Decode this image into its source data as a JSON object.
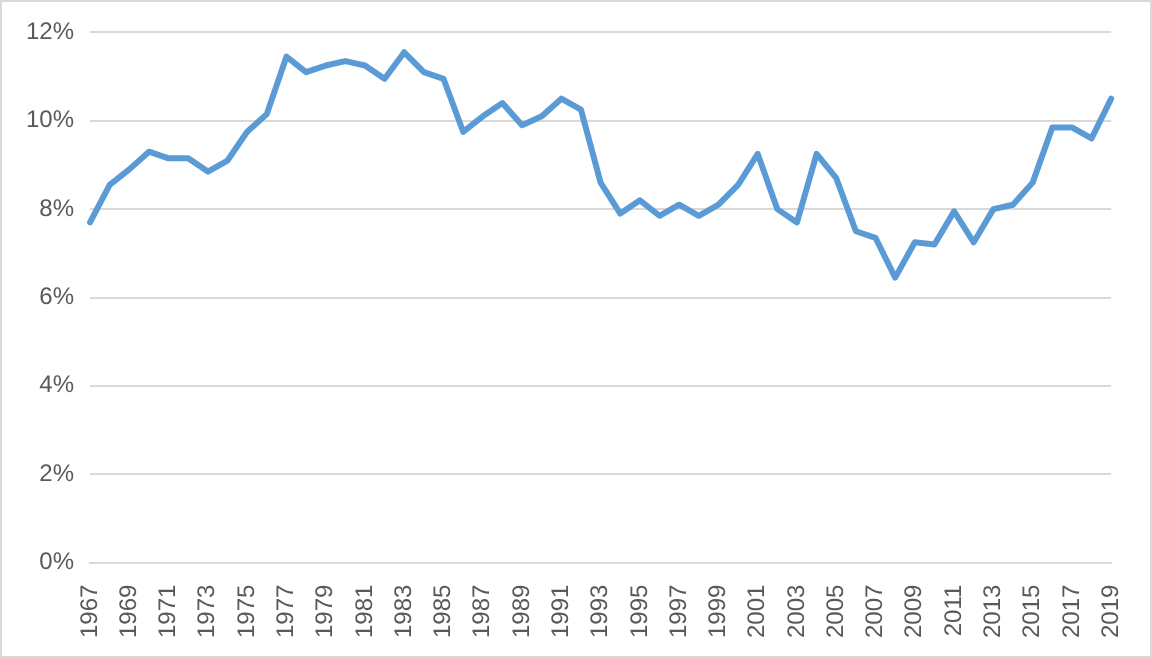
{
  "chart_data": {
    "type": "line",
    "categories": [
      "1967",
      null,
      "1969",
      null,
      "1971",
      null,
      "1973",
      null,
      "1975",
      null,
      "1977",
      null,
      "1979",
      null,
      "1981",
      null,
      "1983",
      null,
      "1985",
      null,
      "1987",
      null,
      "1989",
      null,
      "1991",
      null,
      "1993",
      null,
      "1995",
      null,
      "1997",
      null,
      "1999",
      null,
      "2001",
      null,
      "2003",
      null,
      "2005",
      null,
      "2007",
      null,
      "2009",
      null,
      "2011",
      null,
      "2013",
      null,
      "2015",
      null,
      "2017",
      null,
      "2019"
    ],
    "series": [
      {
        "color": "#5b9bd5",
        "values": [
          7.7,
          8.55,
          8.9,
          9.3,
          9.15,
          9.15,
          8.85,
          9.1,
          9.75,
          10.15,
          11.45,
          11.1,
          11.25,
          11.35,
          11.25,
          10.95,
          11.55,
          11.1,
          10.95,
          9.75,
          10.1,
          10.4,
          9.9,
          10.1,
          10.5,
          10.25,
          8.6,
          7.9,
          8.2,
          7.85,
          8.1,
          7.85,
          8.1,
          8.55,
          9.25,
          8.0,
          7.7,
          9.25,
          8.7,
          7.5,
          7.35,
          6.45,
          7.25,
          7.2,
          7.95,
          7.25,
          8.0,
          8.1,
          8.6,
          9.85,
          9.85,
          9.6,
          10.5
        ]
      }
    ],
    "ylim": [
      0,
      12
    ],
    "yticks": [
      {
        "value": 0,
        "label": "0%"
      },
      {
        "value": 2,
        "label": "2%"
      },
      {
        "value": 4,
        "label": "4%"
      },
      {
        "value": 6,
        "label": "6%"
      },
      {
        "value": 8,
        "label": "8%"
      },
      {
        "value": 10,
        "label": "10%"
      },
      {
        "value": 12,
        "label": "12%"
      }
    ],
    "grid": "y",
    "legend": false,
    "marker": "none",
    "line_style": "solid"
  }
}
